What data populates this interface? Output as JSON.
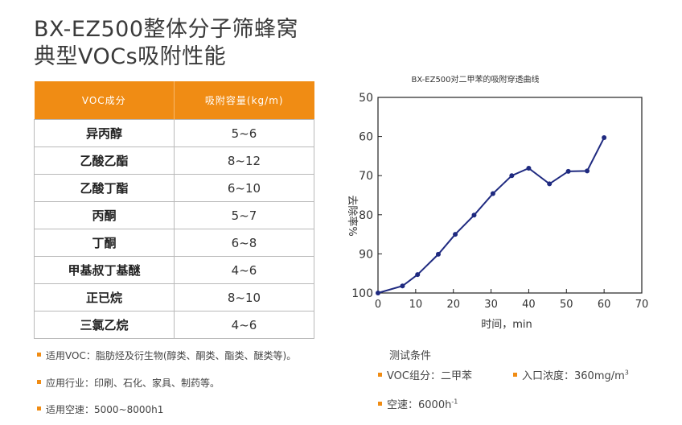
{
  "title_line1": "BX-EZ500整体分子筛蜂窝",
  "title_line2": "典型VOCs吸附性能",
  "table": {
    "headers": [
      "VOC成分",
      "吸附容量(kg/m)"
    ],
    "rows": [
      [
        "异丙醇",
        "5~6"
      ],
      [
        "乙酸乙酯",
        "8~12"
      ],
      [
        "乙酸丁酯",
        "6~10"
      ],
      [
        "丙酮",
        "5~7"
      ],
      [
        "丁酮",
        "6~8"
      ],
      [
        "甲基叔丁基醚",
        "4~6"
      ],
      [
        "正已烷",
        "8~10"
      ],
      [
        "三氯乙烷",
        "4~6"
      ]
    ]
  },
  "notes": [
    "适用VOC：脂肪烃及衍生物(醇类、酮类、酯类、醚类等)。",
    "应用行业：印刷、石化、家具、制药等。",
    "适用空速：5000~8000h1"
  ],
  "conditions": {
    "title": "测试条件",
    "voc": "VOC组分：二甲苯",
    "inlet": "入口浓度：360mg/m",
    "inlet_sup": "3",
    "velocity": "空速：6000h",
    "velocity_sup": "-1"
  },
  "colors": {
    "accent": "#f08c14",
    "line": "#1f2a80"
  },
  "chart_data": {
    "type": "line",
    "title": "BX-EZ500对二甲苯的吸附穿透曲线",
    "xlabel": "时间，min",
    "ylabel": "去除率%",
    "xlim": [
      0,
      70
    ],
    "ylim": [
      50,
      100
    ],
    "y_inverted": true,
    "x_ticks": [
      0,
      10,
      20,
      30,
      40,
      50,
      60,
      70
    ],
    "y_ticks": [
      50,
      60,
      70,
      80,
      90,
      100
    ],
    "grid": false,
    "legend": "none",
    "x": [
      0,
      6.5,
      10.5,
      16,
      20.5,
      25.5,
      30.5,
      35.5,
      40,
      45.5,
      50.5,
      55.5,
      60
    ],
    "y": [
      100,
      98.2,
      95.3,
      90.1,
      85,
      80.1,
      74.6,
      70,
      68.1,
      72.1,
      68.9,
      68.8,
      60.3
    ]
  }
}
